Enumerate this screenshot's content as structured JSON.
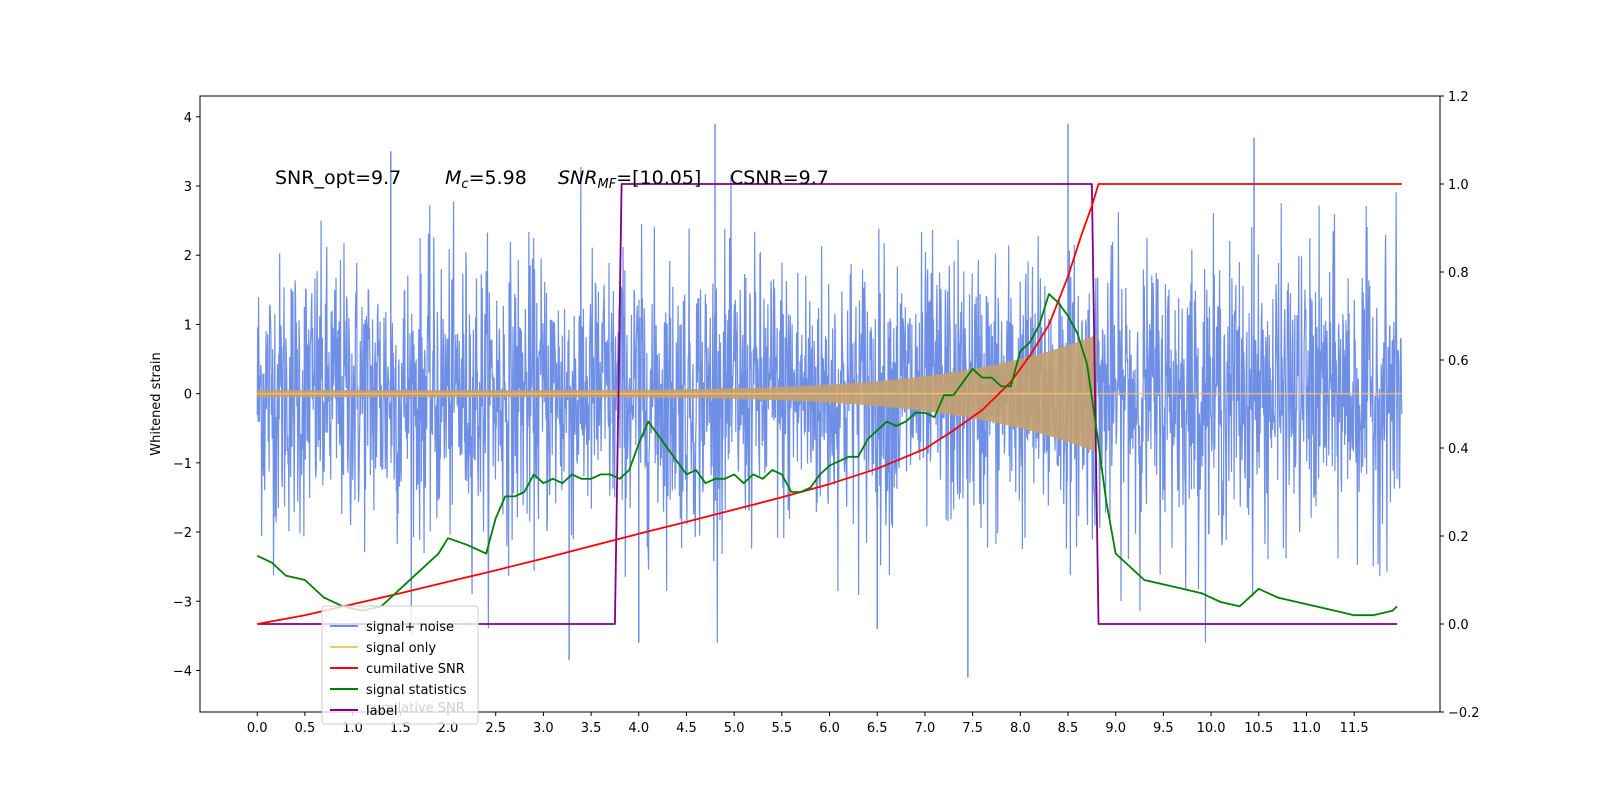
{
  "chart_data": {
    "type": "line",
    "annotation": {
      "snr_opt": "SNR_opt=9.7",
      "mc_sym": "M",
      "mc_sub": "c",
      "mc_val": "=5.98",
      "snr_sym": "SNR",
      "snr_sub": "MF",
      "snr_val": "=[10.05]",
      "csnr": "CSNR=9.7"
    },
    "ylabel": "Whitened strain",
    "x_range": [
      -0.6,
      12.4
    ],
    "xticks": [
      0.0,
      0.5,
      1.0,
      1.5,
      2.0,
      2.5,
      3.0,
      3.5,
      4.0,
      4.5,
      5.0,
      5.5,
      6.0,
      6.5,
      7.0,
      7.5,
      8.0,
      8.5,
      9.0,
      9.5,
      10.0,
      10.5,
      11.0,
      11.5
    ],
    "xtick_labels": [
      "0.0",
      "0.5",
      "1.0",
      "1.5",
      "2.0",
      "2.5",
      "3.0",
      "3.5",
      "4.0",
      "4.5",
      "5.0",
      "5.5",
      "6.0",
      "6.5",
      "7.0",
      "7.5",
      "8.0",
      "8.5",
      "9.0",
      "9.5",
      "10.0",
      "10.5",
      "11.0",
      "11.5"
    ],
    "y_left_range": [
      -4.6,
      4.3
    ],
    "y_left_ticks": [
      -4,
      -3,
      -2,
      -1,
      0,
      1,
      2,
      3,
      4
    ],
    "y_left_labels": [
      "−4",
      "−3",
      "−2",
      "−1",
      "0",
      "1",
      "2",
      "3",
      "4"
    ],
    "y_right_range": [
      -0.2,
      1.2
    ],
    "y_right_ticks": [
      -0.2,
      0.0,
      0.2,
      0.4,
      0.6,
      0.8,
      1.0,
      1.2
    ],
    "y_right_labels": [
      "−0.2",
      "0.0",
      "0.2",
      "0.4",
      "0.6",
      "0.8",
      "1.0",
      "1.2"
    ],
    "signal_window": [
      3.8,
      8.8
    ],
    "legend": {
      "position": "lower-left",
      "entries": [
        {
          "label": "signal+ noise",
          "color": "#6f8fe6"
        },
        {
          "label": "signal only",
          "color": "#ffc36b"
        },
        {
          "label": "cumilative SNR",
          "color": "#ff0000"
        },
        {
          "label": "signal statistics",
          "color": "#008000"
        },
        {
          "label": "label",
          "color": "#800080"
        }
      ],
      "ghost_text": "cumilative SNR"
    },
    "series": [
      {
        "name": "label",
        "axis": "right",
        "color": "#800080",
        "x": [
          0.0,
          3.75,
          3.82,
          8.75,
          8.82,
          11.95
        ],
        "y": [
          0.0,
          0.0,
          1.0,
          1.0,
          0.0,
          0.0
        ]
      },
      {
        "name": "cumilative SNR",
        "axis": "right",
        "color": "#ff0000",
        "x": [
          0.0,
          0.5,
          1.0,
          1.5,
          2.0,
          2.5,
          3.0,
          3.5,
          4.0,
          4.5,
          5.0,
          5.5,
          6.0,
          6.5,
          7.0,
          7.3,
          7.6,
          7.9,
          8.1,
          8.3,
          8.5,
          8.65,
          8.75,
          8.82,
          9.0,
          10.0,
          11.0,
          12.0
        ],
        "y": [
          0.0,
          0.02,
          0.045,
          0.07,
          0.096,
          0.122,
          0.149,
          0.177,
          0.205,
          0.232,
          0.26,
          0.288,
          0.318,
          0.353,
          0.398,
          0.44,
          0.486,
          0.55,
          0.61,
          0.68,
          0.79,
          0.89,
          0.95,
          1.0,
          1.0,
          1.0,
          1.0,
          1.0
        ]
      },
      {
        "name": "signal statistics",
        "axis": "right",
        "color": "#008000",
        "x": [
          0.0,
          0.15,
          0.3,
          0.5,
          0.7,
          0.9,
          1.1,
          1.3,
          1.5,
          1.7,
          1.9,
          2.0,
          2.2,
          2.4,
          2.5,
          2.6,
          2.7,
          2.8,
          2.9,
          3.0,
          3.1,
          3.2,
          3.3,
          3.4,
          3.5,
          3.6,
          3.7,
          3.8,
          3.9,
          4.0,
          4.1,
          4.2,
          4.4,
          4.5,
          4.6,
          4.7,
          4.8,
          4.9,
          5.0,
          5.1,
          5.2,
          5.3,
          5.4,
          5.5,
          5.6,
          5.7,
          5.8,
          5.9,
          6.0,
          6.1,
          6.2,
          6.3,
          6.4,
          6.5,
          6.6,
          6.7,
          6.8,
          6.9,
          7.0,
          7.1,
          7.2,
          7.3,
          7.4,
          7.5,
          7.6,
          7.7,
          7.8,
          7.9,
          8.0,
          8.1,
          8.2,
          8.3,
          8.4,
          8.5,
          8.6,
          8.7,
          8.8,
          8.9,
          9.0,
          9.1,
          9.3,
          9.5,
          9.7,
          9.9,
          10.1,
          10.3,
          10.5,
          10.7,
          10.9,
          11.1,
          11.3,
          11.5,
          11.7,
          11.9,
          11.95
        ],
        "y": [
          0.155,
          0.14,
          0.11,
          0.1,
          0.06,
          0.04,
          0.03,
          0.04,
          0.08,
          0.12,
          0.16,
          0.195,
          0.18,
          0.16,
          0.24,
          0.29,
          0.29,
          0.3,
          0.34,
          0.32,
          0.33,
          0.32,
          0.34,
          0.33,
          0.33,
          0.34,
          0.34,
          0.33,
          0.35,
          0.41,
          0.46,
          0.43,
          0.37,
          0.34,
          0.35,
          0.32,
          0.33,
          0.33,
          0.34,
          0.32,
          0.34,
          0.33,
          0.35,
          0.34,
          0.3,
          0.3,
          0.31,
          0.34,
          0.36,
          0.37,
          0.38,
          0.38,
          0.42,
          0.44,
          0.46,
          0.45,
          0.46,
          0.48,
          0.48,
          0.47,
          0.52,
          0.52,
          0.55,
          0.58,
          0.56,
          0.56,
          0.54,
          0.54,
          0.62,
          0.64,
          0.68,
          0.75,
          0.73,
          0.7,
          0.66,
          0.59,
          0.44,
          0.28,
          0.16,
          0.14,
          0.1,
          0.09,
          0.08,
          0.07,
          0.05,
          0.04,
          0.08,
          0.06,
          0.05,
          0.04,
          0.03,
          0.02,
          0.02,
          0.03,
          0.04
        ]
      }
    ],
    "noise_series": {
      "name": "signal+ noise",
      "axis": "left",
      "color": "#6f8fe6",
      "x_range": [
        0.0,
        12.0
      ],
      "sigma": 1.0,
      "extreme_spikes": [
        {
          "x": 4.8,
          "y": 3.9
        },
        {
          "x": 8.5,
          "y": 3.9
        },
        {
          "x": 7.45,
          "y": -4.1
        },
        {
          "x": 3.27,
          "y": -3.85
        },
        {
          "x": 4.0,
          "y": -3.6
        },
        {
          "x": 6.5,
          "y": -3.4
        },
        {
          "x": 10.45,
          "y": 3.7
        },
        {
          "x": 1.4,
          "y": 3.5
        }
      ]
    },
    "signal_only": {
      "name": "signal only",
      "axis": "left",
      "color": "#ffc36b",
      "x_range": [
        0.0,
        8.8
      ],
      "amplitude_end": 0.85
    }
  }
}
